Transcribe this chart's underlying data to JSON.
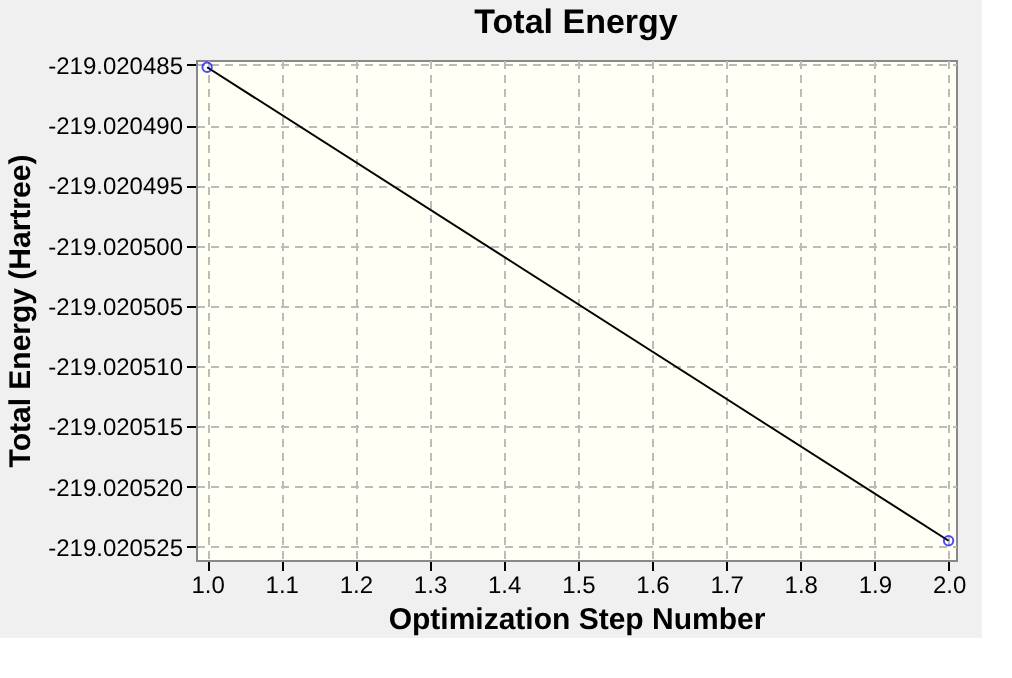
{
  "chart_data": {
    "type": "line",
    "title": "Total Energy",
    "xlabel": "Optimization Step Number",
    "ylabel": "Total Energy (Hartree)",
    "x": [
      1.0,
      2.0
    ],
    "series": [
      {
        "color": "#000000",
        "colors": [
          "#0000ff",
          "#0000ff"
        ],
        "values": [
          -219.0204852,
          -219.0205245
        ]
      }
    ],
    "xlim": [
      0.985,
      2.01
    ],
    "xticks": [
      {
        "value": 1.0,
        "label": "1.0"
      },
      {
        "value": 1.1,
        "label": "1.1"
      },
      {
        "value": 1.2,
        "label": "1.2"
      },
      {
        "value": 1.3,
        "label": "1.3"
      },
      {
        "value": 1.4,
        "label": "1.4"
      },
      {
        "value": 1.5,
        "label": "1.5"
      },
      {
        "value": 1.6,
        "label": "1.6"
      },
      {
        "value": 1.7,
        "label": "1.7"
      },
      {
        "value": 1.8,
        "label": "1.8"
      },
      {
        "value": 1.9,
        "label": "1.9"
      },
      {
        "value": 2.0,
        "label": "2.0"
      }
    ],
    "ylim": [
      -219.0205261,
      -219.0204846
    ],
    "yticks": [
      {
        "value": -219.020485,
        "label": "-219.020485"
      },
      {
        "value": -219.02049,
        "label": "-219.020490"
      },
      {
        "value": -219.020495,
        "label": "-219.020495"
      },
      {
        "value": -219.0205,
        "label": "-219.020500"
      },
      {
        "value": -219.020505,
        "label": "-219.020505"
      },
      {
        "value": -219.02051,
        "label": "-219.020510"
      },
      {
        "value": -219.020515,
        "label": "-219.020515"
      },
      {
        "value": -219.02052,
        "label": "-219.020520"
      },
      {
        "value": -219.020525,
        "label": "-219.020525"
      }
    ],
    "grid": true,
    "marker": "circle",
    "line_style": "solid"
  }
}
